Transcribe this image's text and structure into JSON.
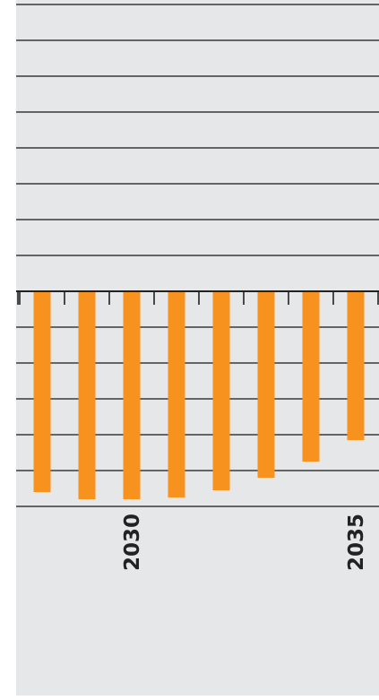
{
  "chart_data": {
    "type": "bar",
    "categories": [
      "",
      "",
      "2030",
      "",
      "",
      "",
      "",
      "2035"
    ],
    "x": [
      2028,
      2029,
      2030,
      2031,
      2032,
      2033,
      2034,
      2035
    ],
    "values": [
      -5.6,
      -5.8,
      -5.8,
      -5.75,
      -5.55,
      -5.2,
      -4.75,
      -4.15
    ],
    "tick_labels": [
      "2030",
      "2035"
    ],
    "title": "",
    "xlabel": "",
    "ylabel": "",
    "ylim": [
      -6,
      8
    ],
    "grid": true,
    "colors": {
      "bar": "#f7921e",
      "background": "#e6e7e9",
      "gridline": "#3a3a3a",
      "axis": "#222222",
      "text": "#222222"
    }
  }
}
